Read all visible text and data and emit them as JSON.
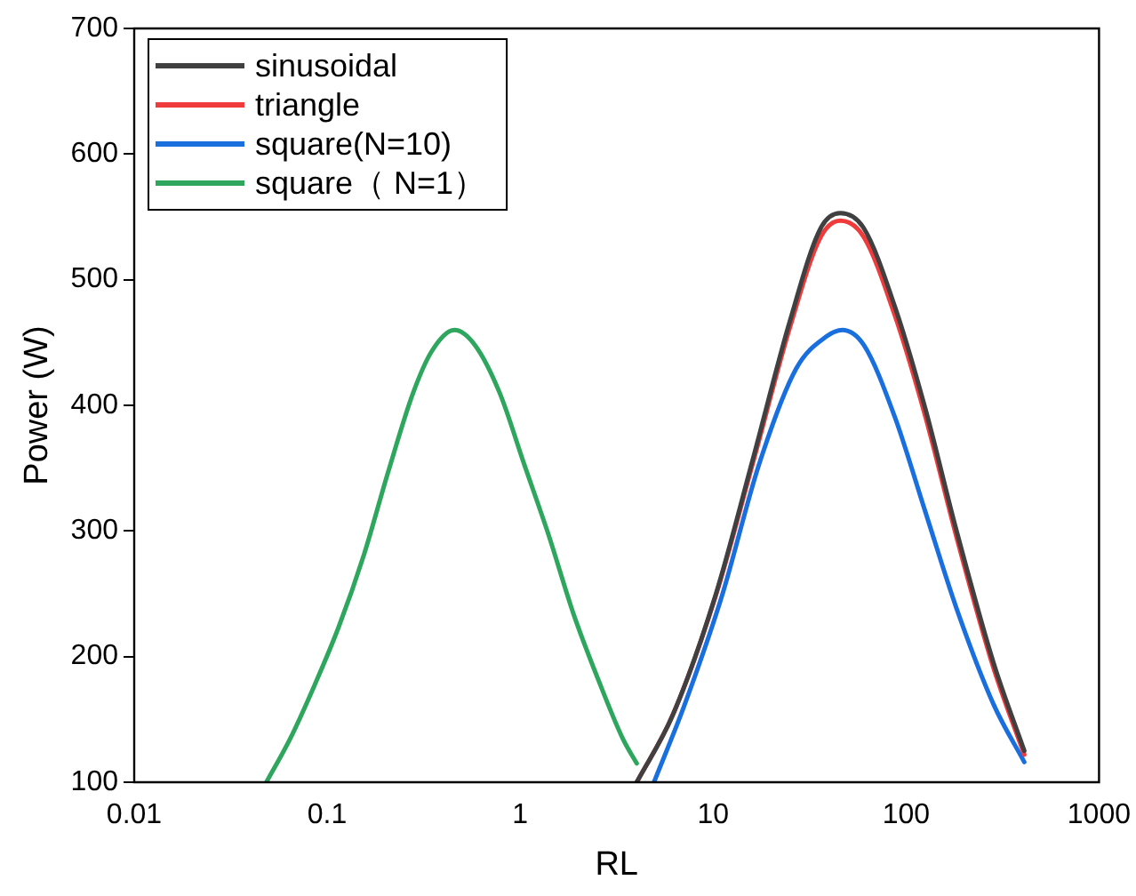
{
  "chart_data": {
    "type": "line",
    "xlabel": "RL",
    "ylabel": "Power (W)",
    "log": "x",
    "xlim": [
      0.01,
      1000
    ],
    "xticks": [
      0.01,
      0.1,
      1,
      10,
      100,
      1000
    ],
    "ylim": [
      100,
      700
    ],
    "yticks": [
      100,
      200,
      300,
      400,
      500,
      600,
      700
    ],
    "grid": false,
    "legend": "top left",
    "marker": "none",
    "line_style": "solid",
    "series": [
      {
        "name": "sinusoidal",
        "color": "#404040",
        "x": [
          4.02,
          6.16,
          10.3,
          16.0,
          25.0,
          36.1,
          45.6,
          60.4,
          87.3,
          126,
          182,
          284,
          410
        ],
        "values": [
          100,
          153,
          249,
          356,
          467,
          541,
          553,
          541,
          479,
          397,
          301,
          195,
          125
        ]
      },
      {
        "name": "triangle",
        "color": "#ef3b3b",
        "x": [
          4.02,
          6.16,
          10.3,
          16.0,
          25.0,
          36.1,
          45.6,
          60.4,
          87.3,
          126,
          182,
          284,
          410
        ],
        "values": [
          100,
          153,
          248,
          353,
          462,
          534,
          547,
          534,
          472,
          391,
          296,
          191,
          122
        ]
      },
      {
        "name": "square(N=10)",
        "color": "#1a6fdf",
        "x": [
          4.94,
          7.13,
          11.1,
          17.3,
          26.9,
          38.8,
          46.7,
          60.4,
          87.3,
          126,
          182,
          284,
          410
        ],
        "values": [
          100,
          162,
          248,
          353,
          429,
          455,
          460,
          448,
          391,
          315,
          239,
          162,
          116
        ]
      },
      {
        "name": "square（ N=1）",
        "color": "#2ea65e",
        "x": [
          0.0484,
          0.064,
          0.0859,
          0.115,
          0.155,
          0.208,
          0.279,
          0.348,
          0.457,
          0.583,
          0.783,
          1.05,
          1.41,
          1.89,
          2.55,
          3.42,
          4.02
        ],
        "values": [
          100,
          134,
          177,
          224,
          281,
          348,
          410,
          443,
          460,
          448,
          410,
          353,
          296,
          234,
          181,
          134,
          115
        ]
      }
    ]
  }
}
